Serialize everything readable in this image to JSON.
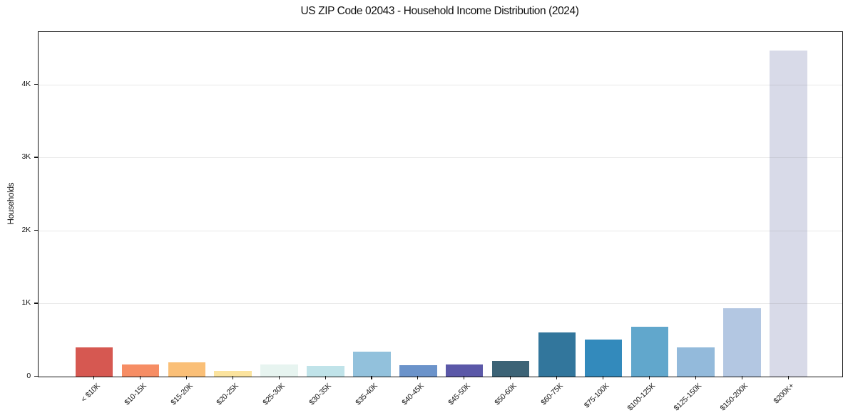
{
  "chart_data": {
    "type": "bar",
    "title": "US ZIP Code 02043 - Household Income Distribution (2024)",
    "ylabel": "Households",
    "xlabel": "",
    "categories": [
      "< $10K",
      "$10-15K",
      "$15-20K",
      "$20-25K",
      "$25-30K",
      "$30-35K",
      "$35-40K",
      "$40-45K",
      "$45-50K",
      "$50-60K",
      "$60-75K",
      "$75-100K",
      "$100-125K",
      "$125-150K",
      "$150-200K",
      "$200K+"
    ],
    "values": [
      400,
      170,
      195,
      75,
      165,
      145,
      340,
      160,
      170,
      210,
      600,
      505,
      680,
      400,
      940,
      4470
    ],
    "bar_colors": [
      "#d65851",
      "#f68d64",
      "#fabf77",
      "#fbe39e",
      "#e7f4f0",
      "#c0e3e9",
      "#92c1dc",
      "#6b93ca",
      "#5b58a8",
      "#3c6376",
      "#32769c",
      "#338abc",
      "#61a7cc",
      "#93badb",
      "#b3c7e2",
      "#d8dae8"
    ],
    "yticks": [
      {
        "value": 0,
        "label": "0"
      },
      {
        "value": 1000,
        "label": "1K"
      },
      {
        "value": 2000,
        "label": "2K"
      },
      {
        "value": 3000,
        "label": "3K"
      },
      {
        "value": 4000,
        "label": "4K"
      }
    ],
    "ylim": [
      0,
      4720
    ],
    "grid": true,
    "legend_position": "none"
  }
}
